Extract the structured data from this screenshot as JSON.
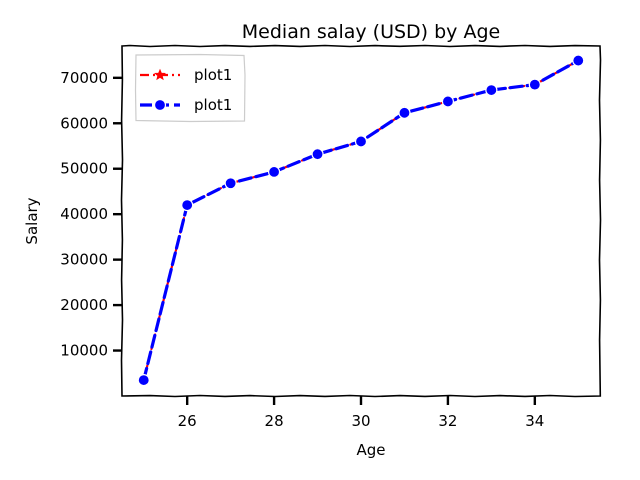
{
  "chart_data": {
    "type": "line",
    "title": "Median salay (USD) by Age",
    "xlabel": "Age",
    "ylabel": "Salary",
    "xlim": [
      24.5,
      35.5
    ],
    "ylim": [
      0,
      77000
    ],
    "xticks": [
      26,
      28,
      30,
      32,
      34
    ],
    "yticks": [
      10000,
      20000,
      30000,
      40000,
      50000,
      60000,
      70000
    ],
    "x": [
      25,
      26,
      27,
      28,
      29,
      30,
      31,
      32,
      33,
      34,
      35
    ],
    "series": [
      {
        "name": "plot1",
        "color": "#ff0000",
        "marker": "star",
        "linestyle": "dashdot",
        "values": [
          3500,
          42000,
          46800,
          49300,
          53200,
          56000,
          62300,
          64800,
          67300,
          68500,
          73800
        ]
      },
      {
        "name": "plot1",
        "color": "#0000ff",
        "marker": "circle",
        "linestyle": "dashed",
        "values": [
          3500,
          42000,
          46800,
          49300,
          53200,
          56000,
          62300,
          64800,
          67300,
          68500,
          73800
        ]
      }
    ],
    "legend_position": "top-left",
    "grid": false
  }
}
